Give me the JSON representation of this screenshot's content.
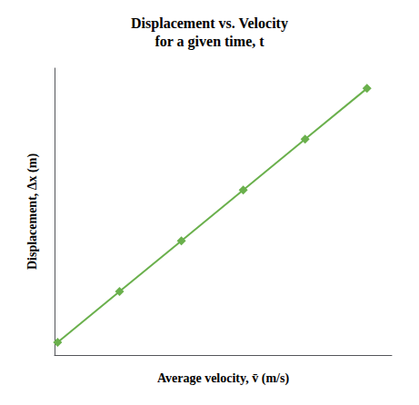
{
  "chart_data": {
    "type": "line",
    "title": "Displacement vs. Velocity\nfor a given time, t",
    "x_label": "Average velocity, v̄ (m/s)",
    "y_label": "Displacement, Δx (m)",
    "x": [
      0,
      1,
      2,
      3,
      4,
      5
    ],
    "values": [
      0,
      1,
      2,
      3,
      4,
      5
    ],
    "color": "#6ab04c",
    "marker": "diamond",
    "xlim": [
      -0.05,
      5.4
    ],
    "ylim": [
      -0.25,
      5.4
    ],
    "tick_labels": false,
    "grid": false
  }
}
